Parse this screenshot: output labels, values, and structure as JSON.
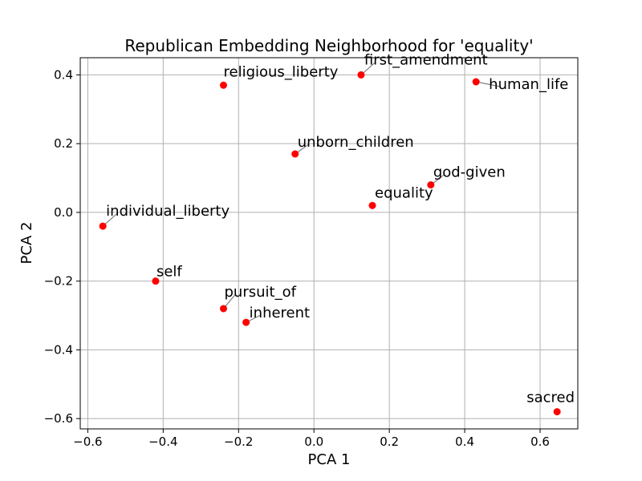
{
  "chart_data": {
    "type": "scatter",
    "title": "Republican Embedding Neighborhood for 'equality'",
    "xlabel": "PCA 1",
    "ylabel": "PCA 2",
    "xlim": [
      -0.62,
      0.7
    ],
    "ylim": [
      -0.63,
      0.45
    ],
    "grid": true,
    "point_color": "#ff0000",
    "leader_color": "#808080",
    "xticks": [
      -0.6,
      -0.4,
      -0.2,
      0.0,
      0.2,
      0.4,
      0.6
    ],
    "xtick_labels": [
      "−0.6",
      "−0.4",
      "−0.2",
      "0.0",
      "0.2",
      "0.4",
      "0.6"
    ],
    "yticks": [
      0.4,
      0.2,
      0.0,
      -0.2,
      -0.4,
      -0.6
    ],
    "ytick_labels": [
      "0.4",
      "0.2",
      "0.0",
      "−0.2",
      "−0.4",
      "−0.6"
    ],
    "points": [
      {
        "label": "religious_liberty",
        "x": -0.24,
        "y": 0.37
      },
      {
        "label": "first_amendment",
        "x": 0.125,
        "y": 0.4
      },
      {
        "label": "human_life",
        "x": 0.43,
        "y": 0.38
      },
      {
        "label": "unborn_children",
        "x": -0.05,
        "y": 0.17
      },
      {
        "label": "god-given",
        "x": 0.31,
        "y": 0.08
      },
      {
        "label": "equality",
        "x": 0.155,
        "y": 0.02
      },
      {
        "label": "individual_liberty",
        "x": -0.56,
        "y": -0.04
      },
      {
        "label": "self",
        "x": -0.42,
        "y": -0.2
      },
      {
        "label": "pursuit_of",
        "x": -0.24,
        "y": -0.28
      },
      {
        "label": "inherent",
        "x": -0.18,
        "y": -0.32
      },
      {
        "label": "sacred",
        "x": 0.645,
        "y": -0.58
      }
    ]
  }
}
